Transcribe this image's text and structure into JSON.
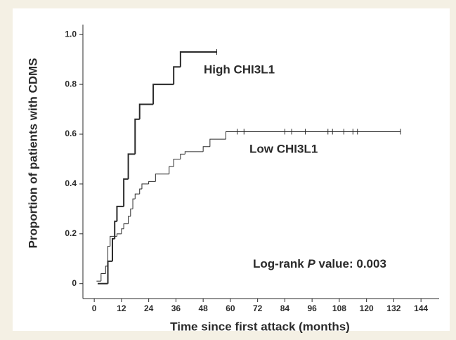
{
  "chart_data": {
    "type": "step",
    "xlabel": "Time since first attack (months)",
    "ylabel": "Proportion of patients with CDMS",
    "annotation": [
      "Log-rank ",
      "P",
      " value: 0.003"
    ],
    "xlim": [
      -5,
      152
    ],
    "ylim": [
      -0.06,
      1.04
    ],
    "xticks": [
      0,
      12,
      24,
      36,
      48,
      60,
      72,
      84,
      96,
      108,
      120,
      132,
      144
    ],
    "yticks": [
      0,
      0.2,
      0.4,
      0.6,
      0.8,
      {
        "value": 1,
        "label": "1.0"
      }
    ],
    "series": [
      {
        "name": "High CHI3L1",
        "color": "#2a2a2a",
        "width": 2,
        "x": [
          1.5,
          6,
          8,
          9,
          10,
          13,
          15,
          18,
          20,
          26,
          35,
          38,
          54
        ],
        "values": [
          0,
          0.09,
          0.18,
          0.25,
          0.31,
          0.42,
          0.52,
          0.66,
          0.72,
          0.8,
          0.87,
          0.93,
          0.93
        ],
        "censored_x": [
          54
        ]
      },
      {
        "name": "Low CHI3L1",
        "color": "#2a2a2a",
        "width": 1,
        "x": [
          1,
          3,
          5,
          6,
          7,
          10,
          12,
          13,
          15,
          16,
          17,
          18,
          20,
          21,
          24,
          27,
          33,
          35,
          38,
          40,
          48,
          51,
          58,
          135
        ],
        "values": [
          0.01,
          0.04,
          0.07,
          0.15,
          0.19,
          0.2,
          0.22,
          0.24,
          0.27,
          0.3,
          0.34,
          0.36,
          0.38,
          0.4,
          0.41,
          0.44,
          0.47,
          0.5,
          0.52,
          0.53,
          0.55,
          0.58,
          0.61,
          0.61
        ],
        "censored_x": [
          63,
          66,
          84,
          87,
          93,
          103,
          105,
          110,
          114,
          116,
          135
        ]
      }
    ]
  }
}
